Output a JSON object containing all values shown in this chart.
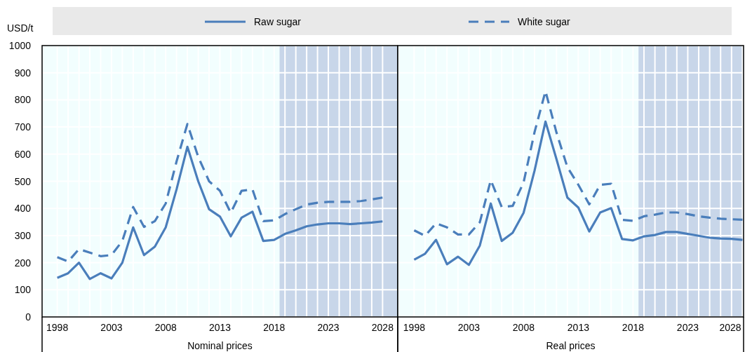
{
  "chart_data": [
    {
      "type": "line",
      "ylabel": "USD/t",
      "xlabel": "Nominal prices",
      "legend": "top",
      "grid": true,
      "x": [
        1998,
        1999,
        2000,
        2001,
        2002,
        2003,
        2004,
        2005,
        2006,
        2007,
        2008,
        2009,
        2010,
        2011,
        2012,
        2013,
        2014,
        2015,
        2016,
        2017,
        2018,
        2019,
        2020,
        2021,
        2022,
        2023,
        2024,
        2025,
        2026,
        2027,
        2028
      ],
      "series": [
        {
          "name": "Raw sugar",
          "color": "#4a7ebb",
          "line_style": "solid",
          "values": [
            144,
            161,
            200,
            140,
            161,
            142,
            200,
            330,
            228,
            259,
            330,
            470,
            627,
            500,
            397,
            370,
            297,
            366,
            388,
            280,
            284,
            306,
            319,
            334,
            341,
            345,
            345,
            342,
            345,
            348,
            352
          ]
        },
        {
          "name": "White sugar",
          "color": "#4a7ebb",
          "line_style": "dashed",
          "values": [
            220,
            204,
            250,
            237,
            224,
            228,
            280,
            405,
            332,
            353,
            418,
            573,
            711,
            590,
            500,
            465,
            384,
            465,
            470,
            353,
            356,
            379,
            397,
            414,
            421,
            424,
            424,
            424,
            427,
            433,
            440
          ]
        }
      ],
      "xlim": [
        1996.6,
        2029.4
      ],
      "ylim": [
        0,
        1000
      ],
      "yticks": [
        0,
        100,
        200,
        300,
        400,
        500,
        600,
        700,
        800,
        900,
        1000
      ],
      "xticks": [
        1998,
        {
          "value": 1999,
          "label": null
        },
        {
          "value": 2000,
          "label": null
        },
        {
          "value": 2001,
          "label": null
        },
        {
          "value": 2002,
          "label": null
        },
        2003,
        {
          "value": 2004,
          "label": null
        },
        {
          "value": 2005,
          "label": null
        },
        {
          "value": 2006,
          "label": null
        },
        {
          "value": 2007,
          "label": null
        },
        2008,
        {
          "value": 2009,
          "label": null
        },
        {
          "value": 2010,
          "label": null
        },
        {
          "value": 2011,
          "label": null
        },
        {
          "value": 2012,
          "label": null
        },
        2013,
        {
          "value": 2014,
          "label": null
        },
        {
          "value": 2015,
          "label": null
        },
        {
          "value": 2016,
          "label": null
        },
        {
          "value": 2017,
          "label": null
        },
        2018,
        {
          "value": 2019,
          "label": null
        },
        {
          "value": 2020,
          "label": null
        },
        {
          "value": 2021,
          "label": null
        },
        {
          "value": 2022,
          "label": null
        },
        2023,
        {
          "value": 2024,
          "label": null
        },
        {
          "value": 2025,
          "label": null
        },
        {
          "value": 2026,
          "label": null
        },
        {
          "value": 2027,
          "label": null
        },
        2028
      ],
      "bands": [
        {
          "axis": "x",
          "from": 2018.5,
          "to": 2029.4,
          "color": "#c8d6e9"
        }
      ]
    },
    {
      "type": "line",
      "xlabel": "Real prices",
      "grid": true,
      "tick_labels": "x",
      "x": [
        1998,
        1999,
        2000,
        2001,
        2002,
        2003,
        2004,
        2005,
        2006,
        2007,
        2008,
        2009,
        2010,
        2011,
        2012,
        2013,
        2014,
        2015,
        2016,
        2017,
        2018,
        2019,
        2020,
        2021,
        2022,
        2023,
        2024,
        2025,
        2026,
        2027,
        2028
      ],
      "series": [
        {
          "color": "#4a7ebb",
          "line_style": "solid",
          "values": [
            211,
            233,
            284,
            194,
            222,
            192,
            263,
            418,
            280,
            310,
            384,
            539,
            720,
            582,
            440,
            403,
            315,
            385,
            401,
            287,
            282,
            297,
            302,
            313,
            313,
            306,
            299,
            292,
            289,
            288,
            284
          ]
        },
        {
          "color": "#4a7ebb",
          "line_style": "dashed",
          "values": [
            319,
            299,
            345,
            330,
            304,
            304,
            349,
            504,
            405,
            409,
            496,
            681,
            832,
            680,
            552,
            487,
            415,
            487,
            491,
            358,
            354,
            371,
            377,
            385,
            385,
            379,
            371,
            366,
            362,
            360,
            358
          ]
        }
      ],
      "xlim": [
        1996.5,
        2028.1
      ],
      "ylim": [
        0,
        1000
      ],
      "yticks": [
        0,
        100,
        200,
        300,
        400,
        500,
        600,
        700,
        800,
        900,
        1000
      ],
      "xticks": [
        1998,
        {
          "value": 1999,
          "label": null
        },
        {
          "value": 2000,
          "label": null
        },
        {
          "value": 2001,
          "label": null
        },
        {
          "value": 2002,
          "label": null
        },
        2003,
        {
          "value": 2004,
          "label": null
        },
        {
          "value": 2005,
          "label": null
        },
        {
          "value": 2006,
          "label": null
        },
        {
          "value": 2007,
          "label": null
        },
        2008,
        {
          "value": 2009,
          "label": null
        },
        {
          "value": 2010,
          "label": null
        },
        {
          "value": 2011,
          "label": null
        },
        {
          "value": 2012,
          "label": null
        },
        2013,
        {
          "value": 2014,
          "label": null
        },
        {
          "value": 2015,
          "label": null
        },
        {
          "value": 2016,
          "label": null
        },
        {
          "value": 2017,
          "label": null
        },
        2018,
        {
          "value": 2019,
          "label": null
        },
        {
          "value": 2020,
          "label": null
        },
        {
          "value": 2021,
          "label": null
        },
        {
          "value": 2022,
          "label": null
        },
        2023,
        {
          "value": 2024,
          "label": null
        },
        {
          "value": 2025,
          "label": null
        },
        {
          "value": 2026,
          "label": null
        },
        {
          "value": 2027,
          "label": null
        },
        2028
      ],
      "bands": [
        {
          "axis": "x",
          "from": 2018.5,
          "to": 2028.1,
          "color": "#c8d6e9"
        }
      ]
    }
  ]
}
